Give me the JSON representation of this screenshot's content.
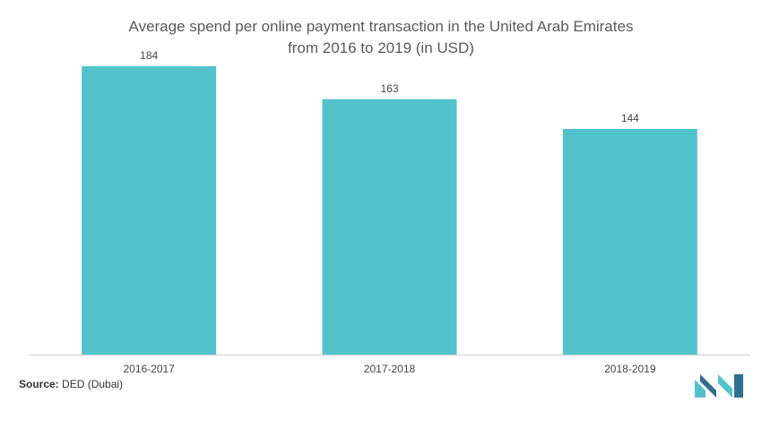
{
  "chart_data": {
    "type": "bar",
    "title_line1": "Average spend per online payment transaction in the United Arab Emirates",
    "title_line2": "from 2016 to 2019 (in USD)",
    "categories": [
      "2016-2017",
      "2017-2018",
      "2018-2019"
    ],
    "values": [
      184,
      163,
      144
    ],
    "value_labels": [
      "184",
      "163",
      "144"
    ],
    "xlabel": "",
    "ylabel": "",
    "ylim": [
      0,
      200
    ],
    "grid": false,
    "legend": "none",
    "bar_color": "#52c3cb",
    "axis_color": "#cccccc"
  },
  "footer": {
    "source_label": "Source:",
    "source_text": " DED (Dubai)"
  },
  "logo": {
    "icon": "mordor-logo-icon",
    "color_dark": "#2e6f93",
    "color_light": "#52c3cb"
  }
}
